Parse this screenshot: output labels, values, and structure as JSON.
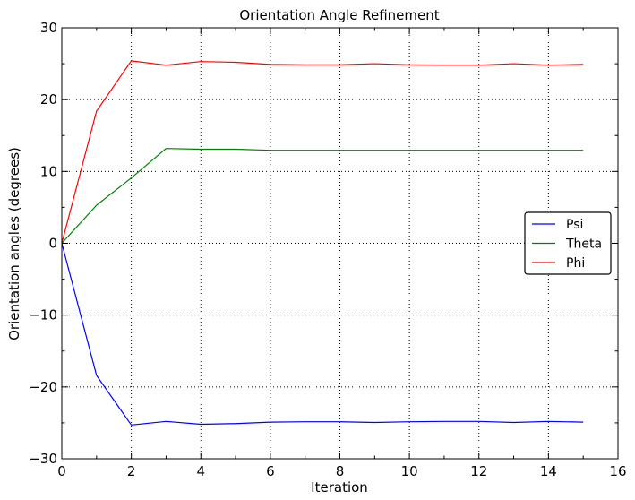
{
  "chart_data": {
    "type": "line",
    "title": "Orientation Angle Refinement",
    "xlabel": "Iteration",
    "ylabel": "Orientation angles (degrees)",
    "xlim": [
      0,
      16
    ],
    "ylim": [
      -30,
      30
    ],
    "xticks": [
      0,
      2,
      4,
      6,
      8,
      10,
      12,
      14,
      16
    ],
    "yticks": [
      -30,
      -20,
      -10,
      0,
      10,
      20,
      30
    ],
    "xtick_labels": [
      "0",
      "2",
      "4",
      "6",
      "8",
      "10",
      "12",
      "14",
      "16"
    ],
    "ytick_labels": [
      "−30",
      "−20",
      "−10",
      "0",
      "10",
      "20",
      "30"
    ],
    "grid": true,
    "legend_position": "center-right",
    "x": [
      0,
      1,
      2,
      3,
      4,
      5,
      6,
      7,
      8,
      9,
      10,
      11,
      12,
      13,
      14,
      15
    ],
    "series": [
      {
        "name": "Psi",
        "color": "#0000ff",
        "values": [
          0,
          -18.4,
          -25.3,
          -24.8,
          -25.2,
          -25.1,
          -24.9,
          -24.85,
          -24.85,
          -24.95,
          -24.85,
          -24.8,
          -24.8,
          -24.95,
          -24.8,
          -24.9
        ]
      },
      {
        "name": "Theta",
        "color": "#008000",
        "values": [
          0,
          5.3,
          9.1,
          13.2,
          13.1,
          13.1,
          12.95,
          12.95,
          12.95,
          12.95,
          12.95,
          12.95,
          12.95,
          12.95,
          12.95,
          12.95
        ]
      },
      {
        "name": "Phi",
        "color": "#ff0000",
        "values": [
          0,
          18.4,
          25.4,
          24.8,
          25.3,
          25.2,
          24.9,
          24.85,
          24.85,
          25.0,
          24.85,
          24.8,
          24.8,
          25.0,
          24.8,
          24.9
        ]
      }
    ]
  }
}
